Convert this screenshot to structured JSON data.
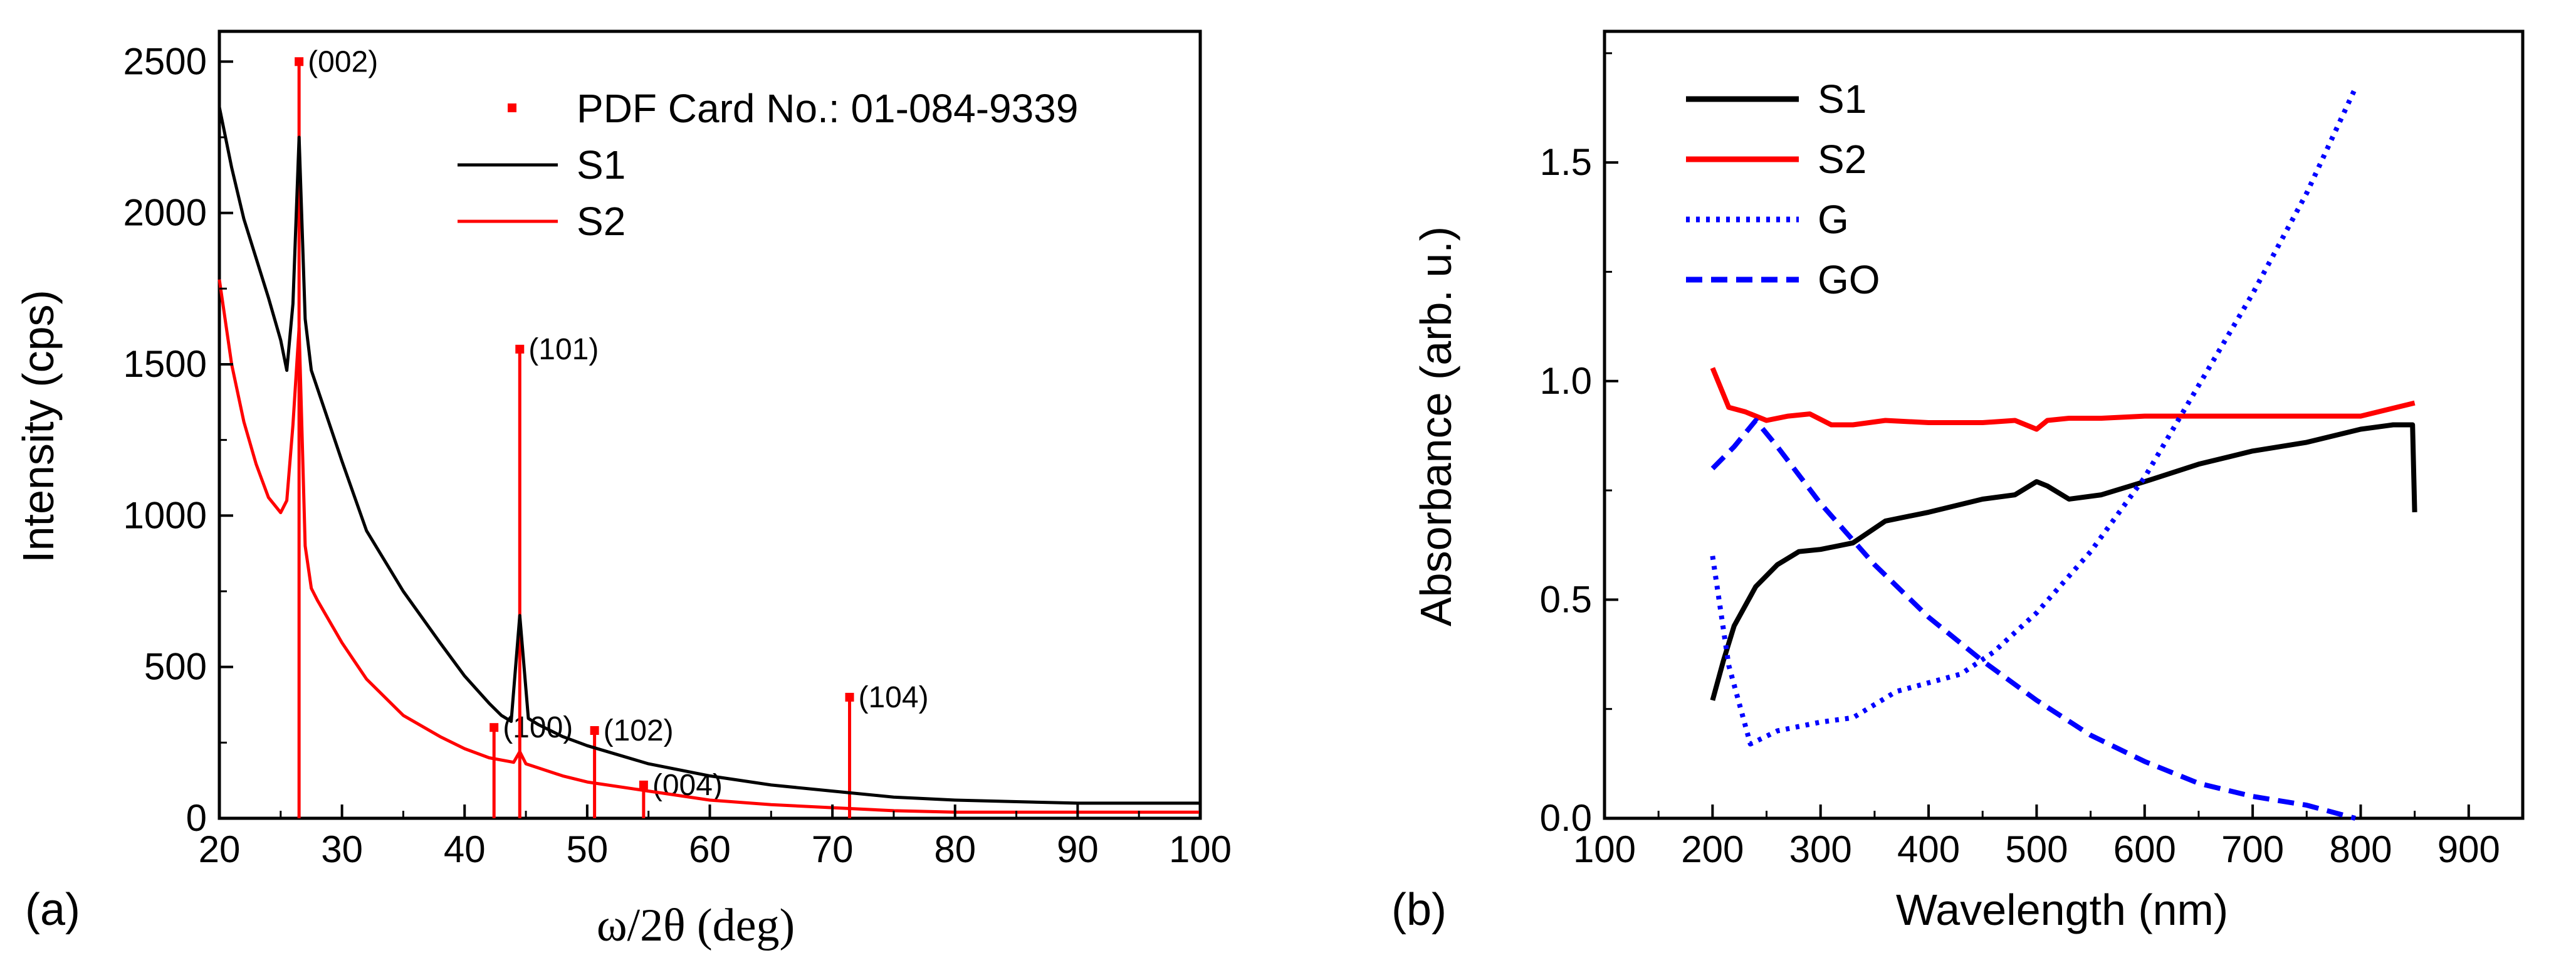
{
  "chart_data": [
    {
      "id": "a",
      "type": "line",
      "panel_label": "(a)",
      "xlabel": "ω/2θ (deg)",
      "ylabel": "Intensity (cps)",
      "xlim": [
        20,
        100
      ],
      "ylim": [
        0,
        2600
      ],
      "xticks": [
        20,
        30,
        40,
        50,
        60,
        70,
        80,
        90,
        100
      ],
      "yticks": [
        0,
        500,
        1000,
        1500,
        2000,
        2500
      ],
      "legend_position": "top-right",
      "reference": {
        "name": "PDF Card No.: 01-084-9339",
        "color": "#ff0000",
        "peaks": [
          {
            "x": 26.5,
            "y": 2500,
            "label": "(002)"
          },
          {
            "x": 42.4,
            "y": 300,
            "label": "(100)"
          },
          {
            "x": 44.5,
            "y": 1550,
            "label": "(101)"
          },
          {
            "x": 50.6,
            "y": 290,
            "label": "(102)"
          },
          {
            "x": 54.6,
            "y": 110,
            "label": "(004)"
          },
          {
            "x": 71.4,
            "y": 400,
            "label": "(104)"
          }
        ]
      },
      "series": [
        {
          "name": "S1",
          "color": "#000000",
          "dash": "",
          "x": [
            20,
            21,
            22,
            23,
            24,
            25,
            25.5,
            26,
            26.5,
            27,
            27.5,
            28,
            30,
            32,
            35,
            38,
            40,
            42,
            43,
            43.8,
            44.5,
            45.2,
            46,
            48,
            50,
            55,
            60,
            65,
            70,
            75,
            80,
            85,
            90,
            95,
            100
          ],
          "y": [
            2350,
            2150,
            1980,
            1850,
            1720,
            1580,
            1480,
            1700,
            2250,
            1650,
            1480,
            1420,
            1180,
            950,
            750,
            580,
            470,
            380,
            340,
            320,
            670,
            330,
            310,
            270,
            240,
            180,
            140,
            110,
            90,
            70,
            60,
            55,
            50,
            50,
            50
          ]
        },
        {
          "name": "S2",
          "color": "#ff0000",
          "dash": "",
          "x": [
            20,
            21,
            22,
            23,
            24,
            25,
            25.5,
            26,
            26.5,
            27,
            27.5,
            28,
            30,
            32,
            35,
            38,
            40,
            42,
            44,
            44.5,
            45,
            48,
            50,
            55,
            60,
            65,
            70,
            75,
            80,
            85,
            90,
            95,
            100
          ],
          "y": [
            1780,
            1500,
            1310,
            1170,
            1060,
            1010,
            1050,
            1300,
            1620,
            900,
            760,
            720,
            580,
            460,
            340,
            270,
            230,
            200,
            185,
            220,
            180,
            140,
            120,
            90,
            60,
            45,
            35,
            25,
            20,
            20,
            20,
            20,
            20
          ]
        }
      ]
    },
    {
      "id": "b",
      "type": "line",
      "panel_label": "(b)",
      "xlabel": "Wavelength (nm)",
      "ylabel": "Absorbance (arb. u.)",
      "xlim": [
        100,
        950
      ],
      "ylim": [
        0,
        1.8
      ],
      "xticks": [
        100,
        200,
        300,
        400,
        500,
        600,
        700,
        800,
        900
      ],
      "yticks": [
        0.0,
        0.5,
        1.0,
        1.5
      ],
      "ytick_labels": [
        "0.0",
        "0.5",
        "1.0",
        "1.5"
      ],
      "legend_position": "top-left",
      "series": [
        {
          "name": "S1",
          "color": "#000000",
          "dash": "",
          "x": [
            200,
            210,
            220,
            240,
            260,
            280,
            300,
            330,
            360,
            400,
            450,
            480,
            500,
            510,
            530,
            560,
            600,
            650,
            700,
            750,
            800,
            830,
            848,
            850
          ],
          "y": [
            0.27,
            0.36,
            0.44,
            0.53,
            0.58,
            0.61,
            0.615,
            0.63,
            0.68,
            0.7,
            0.73,
            0.74,
            0.77,
            0.76,
            0.73,
            0.74,
            0.77,
            0.81,
            0.84,
            0.86,
            0.89,
            0.9,
            0.9,
            0.7
          ]
        },
        {
          "name": "S2",
          "color": "#ff0000",
          "dash": "",
          "x": [
            200,
            205,
            215,
            230,
            250,
            270,
            290,
            310,
            330,
            360,
            400,
            450,
            480,
            500,
            510,
            530,
            560,
            600,
            650,
            700,
            750,
            800,
            850
          ],
          "y": [
            1.03,
            1.0,
            0.94,
            0.93,
            0.91,
            0.92,
            0.925,
            0.9,
            0.9,
            0.91,
            0.905,
            0.905,
            0.91,
            0.89,
            0.91,
            0.915,
            0.915,
            0.92,
            0.92,
            0.92,
            0.92,
            0.92,
            0.95
          ]
        },
        {
          "name": "G",
          "color": "#0000ff",
          "dash": "6,10",
          "x": [
            200,
            215,
            235,
            260,
            300,
            330,
            370,
            400,
            430,
            460,
            500,
            550,
            600,
            650,
            700,
            750,
            795
          ],
          "y": [
            0.6,
            0.35,
            0.17,
            0.2,
            0.22,
            0.23,
            0.29,
            0.31,
            0.33,
            0.38,
            0.47,
            0.61,
            0.78,
            0.99,
            1.2,
            1.43,
            1.67
          ]
        },
        {
          "name": "GO",
          "color": "#0000ff",
          "dash": "26,14",
          "x": [
            200,
            220,
            240,
            260,
            300,
            350,
            400,
            450,
            500,
            550,
            600,
            650,
            700,
            750,
            795
          ],
          "y": [
            0.8,
            0.85,
            0.91,
            0.85,
            0.72,
            0.58,
            0.46,
            0.36,
            0.27,
            0.19,
            0.13,
            0.08,
            0.05,
            0.03,
            0.0
          ]
        }
      ]
    }
  ]
}
